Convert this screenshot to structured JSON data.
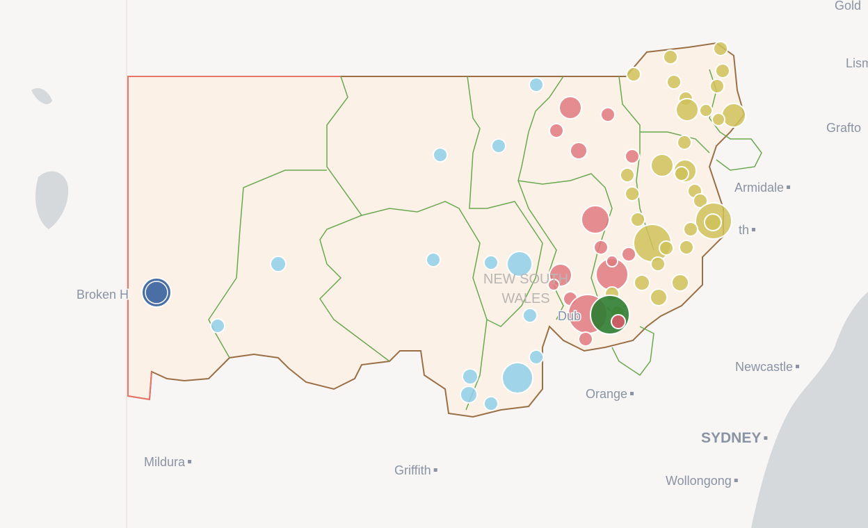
{
  "labels": [
    "Gold",
    "Lism",
    "Grafto",
    "Armidale",
    "th",
    "Broken H",
    "NEW SOUTH",
    "WALES",
    "Dub",
    "Orange",
    "Newcastle",
    "SYDNEY",
    "Wollongong",
    "Mildura",
    "Griffith"
  ]
}
